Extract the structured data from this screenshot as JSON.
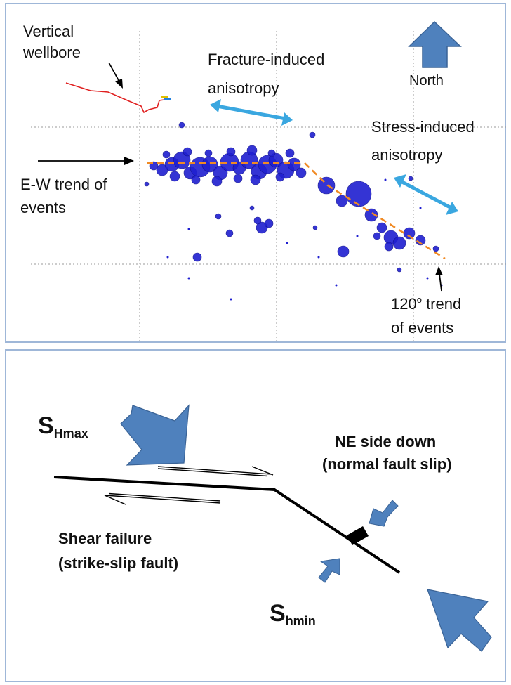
{
  "top": {
    "vertical_wellbore_1": "Vertical",
    "vertical_wellbore_2": "wellbore",
    "fracture_1": "Fracture-induced",
    "fracture_2": "anisotropy",
    "north": "North",
    "stress_1": "Stress-induced",
    "stress_2": "anisotropy",
    "ew_1": "E-W trend of",
    "ew_2": "events",
    "t120_1_num": "120",
    "t120_1_deg": "o",
    "t120_1_rest": " trend",
    "t120_2": "of events",
    "colors": {
      "events": "#1f1fd0",
      "trend_line": "#f08a24",
      "anisotropy_arrow": "#3aa7e0",
      "north_arrow": "#4f81bd",
      "wellbore": "#e02020"
    }
  },
  "bottom": {
    "shmax_main": "S",
    "shmax_sub": "Hmax",
    "shmin_main": "S",
    "shmin_sub": "hmin",
    "ne_1": "NE side down",
    "ne_2": "(normal fault slip)",
    "shear_1": "Shear failure",
    "shear_2": "(strike-slip fault)",
    "colors": {
      "stress_arrow": "#4f81bd"
    }
  }
}
